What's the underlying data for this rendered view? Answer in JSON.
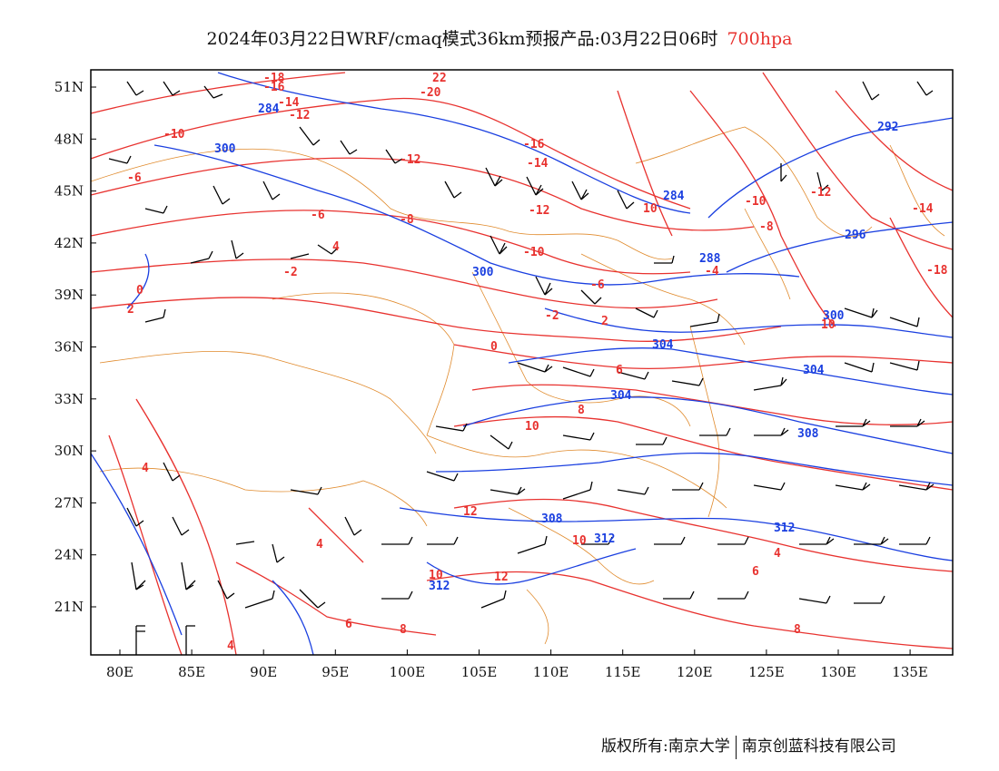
{
  "header": {
    "title_main": "2024年03月22日WRF/cmaq模式36km预报产品:03月22日06时",
    "title_level": "700hpa"
  },
  "footer": {
    "copyright": "版权所有:南京大学",
    "company": "南京创蓝科技有限公司"
  },
  "map": {
    "lon_ticks": [
      "80E",
      "85E",
      "90E",
      "95E",
      "100E",
      "105E",
      "110E",
      "115E",
      "120E",
      "125E",
      "130E",
      "135E"
    ],
    "lat_ticks": [
      "51N",
      "48N",
      "45N",
      "42N",
      "39N",
      "36N",
      "33N",
      "30N",
      "27N",
      "24N",
      "21N"
    ],
    "colors": {
      "temperature": "#e8322f",
      "geopotential": "#1a3fe0",
      "border": "#e08a2c",
      "wind": "#000000"
    },
    "temperature_labels": [
      "-18",
      "-16",
      "-14",
      "-12",
      "-10",
      "-8",
      "-6",
      "-4",
      "-2",
      "0",
      "2",
      "4",
      "6",
      "8",
      "10",
      "12",
      "-20",
      "22"
    ],
    "height_labels": [
      "284",
      "288",
      "292",
      "296",
      "300",
      "304",
      "308",
      "312"
    ]
  }
}
